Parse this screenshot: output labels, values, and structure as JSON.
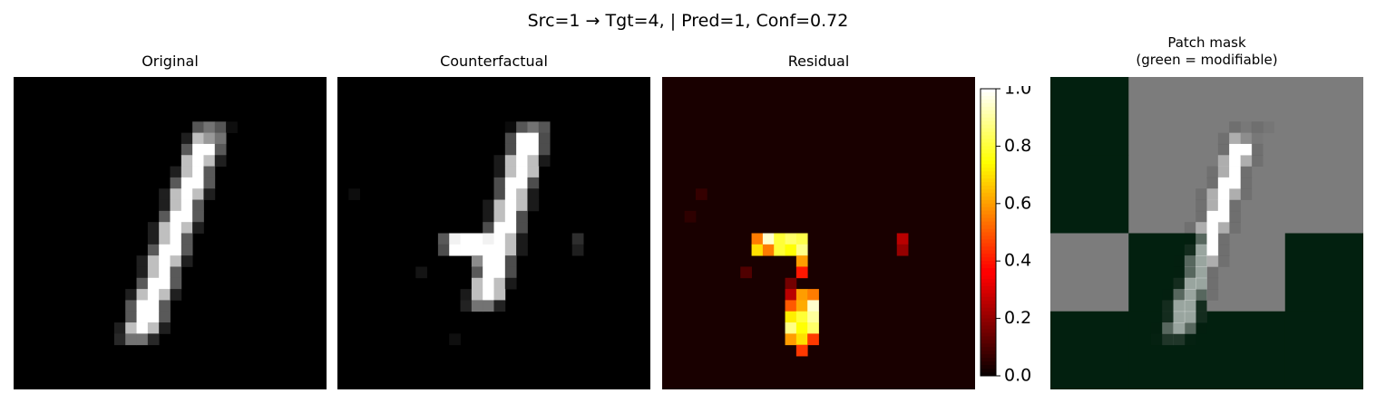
{
  "suptitle": "Src=1 → Tgt=4, | Pred=1, Conf=0.72",
  "panels": {
    "original": {
      "title": "Original"
    },
    "counterfactual": {
      "title": "Counterfactual"
    },
    "residual": {
      "title": "Residual"
    },
    "patch_mask": {
      "title_line1": "Patch mask",
      "title_line2": "(green = modifiable)"
    }
  },
  "colors": {
    "mask_green": "#02200f",
    "mask_fixed_gray": "#7c7c7c",
    "residual_colormap": "hot"
  },
  "chart_data": [
    {
      "type": "heatmap",
      "name": "Original",
      "title": "Original",
      "colormap": "gray",
      "grid_size": [
        28,
        28
      ],
      "value_range": [
        0,
        1
      ],
      "note_cells": "Handwritten digit 1: a diagonal stroke of bright pixels from the upper right to the lower left"
    },
    {
      "type": "heatmap",
      "name": "Counterfactual",
      "title": "Counterfactual",
      "colormap": "gray",
      "grid_size": [
        28,
        28
      ],
      "value_range": [
        0,
        1
      ],
      "note_cells": "The digit 1 stroke plus a horizontal bar on the left side, making it look like a 4"
    },
    {
      "type": "heatmap",
      "name": "Residual",
      "title": "Residual",
      "colormap": "hot",
      "grid_size": [
        28,
        28
      ],
      "colorbar": {
        "ticks": [
          0.0,
          0.2,
          0.4,
          0.6,
          0.8,
          1.0
        ],
        "tick_labels": [
          "0.0",
          "0.2",
          "0.4",
          "0.6",
          "0.8",
          "1.0"
        ],
        "range": [
          0,
          1
        ]
      }
    },
    {
      "type": "heatmap",
      "name": "Patch mask",
      "title": "Patch mask\n(green = modifiable)",
      "grid_size": [
        4,
        4
      ],
      "mask_blocks": [
        [
          1,
          0,
          0,
          0
        ],
        [
          1,
          0,
          0,
          0
        ],
        [
          0,
          1,
          0,
          1
        ],
        [
          1,
          1,
          1,
          1
        ]
      ],
      "mask_legend": "1 = green (modifiable), 0 = gray (fixed)"
    }
  ]
}
